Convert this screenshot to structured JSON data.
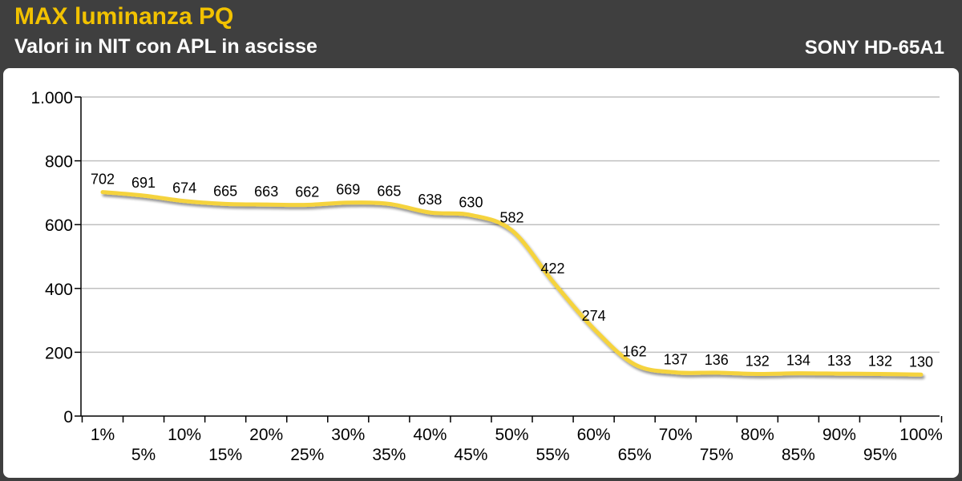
{
  "header": {
    "title": "MAX luminanza PQ",
    "subtitle": "Valori in NIT con APL in ascisse",
    "brand": "SONY HD-65A1"
  },
  "colors": {
    "header_bg": "#3f3f3f",
    "title": "#f2c200",
    "line": "#f5d33c",
    "line_shadow": "#9a9a9a",
    "grid": "#c0c0c0"
  },
  "chart_data": {
    "type": "line",
    "title": "MAX luminanza PQ",
    "subtitle": "Valori in NIT con APL in ascisse",
    "categories": [
      "1%",
      "5%",
      "10%",
      "15%",
      "20%",
      "25%",
      "30%",
      "35%",
      "40%",
      "45%",
      "50%",
      "55%",
      "60%",
      "65%",
      "70%",
      "75%",
      "80%",
      "85%",
      "90%",
      "95%",
      "100%"
    ],
    "series": [
      {
        "values": [
          702,
          691,
          674,
          665,
          663,
          662,
          669,
          665,
          638,
          630,
          582,
          422,
          274,
          162,
          137,
          136,
          132,
          134,
          133,
          132,
          130
        ]
      }
    ],
    "data_labels": [
      "702",
      "691",
      "674",
      "665",
      "663",
      "662",
      "669",
      "665",
      "638",
      "630",
      "582",
      "422",
      "274",
      "162",
      "137",
      "136",
      "132",
      "134",
      "133",
      "132",
      "130"
    ],
    "ylim": [
      0,
      1000
    ],
    "yticks": [
      0,
      200,
      400,
      600,
      800,
      1000
    ],
    "ytick_labels": [
      "0",
      "200",
      "400",
      "600",
      "800",
      "1.000"
    ],
    "grid": true,
    "smooth": true
  }
}
